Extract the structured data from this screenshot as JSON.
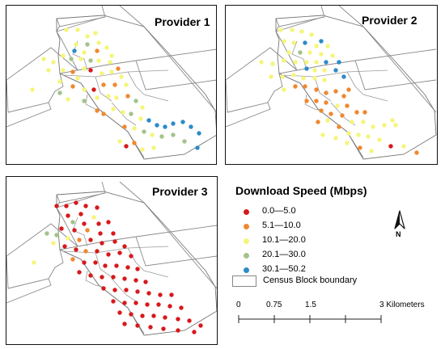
{
  "map": {
    "panels": [
      {
        "title": "Provider 1"
      },
      {
        "title": "Provider 2"
      },
      {
        "title": "Provider 3"
      }
    ],
    "legend": {
      "title": "Download Speed (Mbps)",
      "classes": [
        {
          "label": "0.0—5.0",
          "color": "#d7191c"
        },
        {
          "label": "5.1—10.0",
          "color": "#f0882e"
        },
        {
          "label": "10.1—20.0",
          "color": "#f5f57a"
        },
        {
          "label": "20.1—30.0",
          "color": "#a3c38a"
        },
        {
          "label": "30.1—50.2",
          "color": "#2c8bc9"
        }
      ],
      "boundary_label": "Census Block boundary"
    },
    "north_arrow": {
      "label": "N",
      "icon": "north-arrow-icon"
    },
    "scale_bar": {
      "ticks": [
        "0",
        "0.75",
        "1.5",
        "3 Kilometers"
      ]
    }
  }
}
